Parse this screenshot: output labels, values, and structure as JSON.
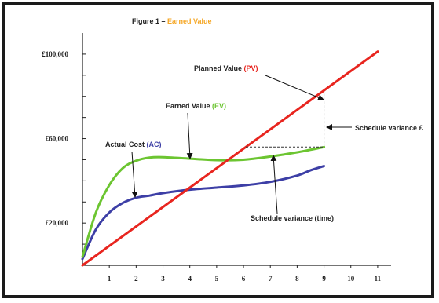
{
  "chart_data": {
    "type": "line",
    "title_prefix": "Figure 1 – ",
    "title_highlight": "Earned Value",
    "title_highlight_color": "#f5a623",
    "x_ticks": [
      1,
      2,
      3,
      4,
      5,
      6,
      7,
      8,
      9,
      10,
      11
    ],
    "y_tick_labels": [
      {
        "value": 100000,
        "label": "£100,000"
      },
      {
        "value": 60000,
        "label": "£60,000"
      },
      {
        "value": 20000,
        "label": "£20,000"
      }
    ],
    "xlim": [
      0,
      11.5
    ],
    "ylim": [
      0,
      110000
    ],
    "series": [
      {
        "key": "pv",
        "color": "#e8251f",
        "points": [
          [
            0,
            0
          ],
          [
            1,
            9200
          ],
          [
            2,
            18400
          ],
          [
            3,
            27600
          ],
          [
            4,
            36800
          ],
          [
            5,
            46000
          ],
          [
            6,
            55200
          ],
          [
            7,
            64400
          ],
          [
            8,
            73600
          ],
          [
            9,
            82800
          ],
          [
            10,
            92000
          ],
          [
            11,
            101200
          ]
        ]
      },
      {
        "key": "ev",
        "color": "#6cc531",
        "points": [
          [
            0,
            4000
          ],
          [
            0.5,
            25000
          ],
          [
            1,
            38000
          ],
          [
            1.5,
            46000
          ],
          [
            2,
            49500
          ],
          [
            2.5,
            51000
          ],
          [
            3,
            51200
          ],
          [
            4,
            50500
          ],
          [
            5,
            49800
          ],
          [
            6,
            50000
          ],
          [
            7,
            51500
          ],
          [
            8,
            53500
          ],
          [
            9,
            56000
          ]
        ]
      },
      {
        "key": "ac",
        "color": "#3d3fa6",
        "points": [
          [
            0,
            3000
          ],
          [
            0.5,
            17000
          ],
          [
            1,
            25000
          ],
          [
            1.5,
            29500
          ],
          [
            2,
            32000
          ],
          [
            2.5,
            33000
          ],
          [
            3,
            34200
          ],
          [
            4,
            35800
          ],
          [
            5,
            36800
          ],
          [
            6,
            37800
          ],
          [
            7,
            39500
          ],
          [
            8,
            42500
          ],
          [
            8.5,
            45000
          ],
          [
            9,
            47000
          ]
        ]
      }
    ],
    "labels": {
      "pv_label": "Planned Value ",
      "pv_abbr": "(PV)",
      "ev_label": "Earned Value ",
      "ev_abbr": "(EV)",
      "ac_label": "Actual Cost ",
      "ac_abbr": "(AC)",
      "sv_cost": "Schedule variance £",
      "sv_time": "Schedule variance (time)"
    }
  }
}
